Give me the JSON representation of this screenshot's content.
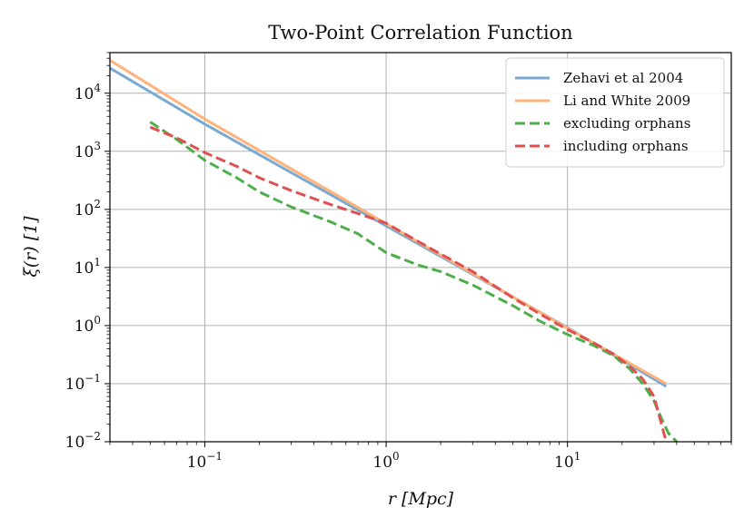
{
  "chart_data": {
    "type": "line",
    "title": "Two-Point Correlation Function",
    "xlabel": "r [Mpc]",
    "ylabel": "ξ(r) [1]",
    "xscale": "log",
    "yscale": "log",
    "xlim": [
      0.03,
      80
    ],
    "ylim": [
      0.01,
      50000
    ],
    "grid": true,
    "legend_position": "top-right",
    "xticks": [
      {
        "value": 0.1,
        "base": "10",
        "exp": "−1"
      },
      {
        "value": 1,
        "base": "10",
        "exp": "0"
      },
      {
        "value": 10,
        "base": "10",
        "exp": "1"
      }
    ],
    "yticks": [
      {
        "value": 0.01,
        "base": "10",
        "exp": "−2"
      },
      {
        "value": 0.1,
        "base": "10",
        "exp": "−1"
      },
      {
        "value": 1,
        "base": "10",
        "exp": "0"
      },
      {
        "value": 10,
        "base": "10",
        "exp": "1"
      },
      {
        "value": 100,
        "base": "10",
        "exp": "2"
      },
      {
        "value": 1000,
        "base": "10",
        "exp": "3"
      },
      {
        "value": 10000,
        "base": "10",
        "exp": "4"
      }
    ],
    "series": [
      {
        "name": "Zehavi et al 2004",
        "color": "#7aaad2",
        "style": "solid",
        "x": [
          0.03,
          0.1,
          1,
          10,
          35
        ],
        "y": [
          27000,
          2940,
          52,
          0.92,
          0.09
        ]
      },
      {
        "name": "Li and White 2009",
        "color": "#ffb27a",
        "style": "solid",
        "x": [
          0.03,
          0.1,
          1,
          10,
          35
        ],
        "y": [
          37000,
          3600,
          57,
          0.9,
          0.1
        ]
      },
      {
        "name": "excluding orphans",
        "color": "#4daf4a",
        "style": "dashed",
        "x": [
          0.05,
          0.07,
          0.1,
          0.15,
          0.2,
          0.3,
          0.5,
          0.7,
          1,
          1.5,
          2,
          3,
          5,
          7,
          10,
          14,
          18,
          22,
          26,
          30,
          33,
          36,
          40
        ],
        "y": [
          3200,
          1600,
          700,
          350,
          200,
          110,
          60,
          38,
          18,
          11,
          8.5,
          5,
          2.2,
          1.2,
          0.7,
          0.45,
          0.3,
          0.18,
          0.1,
          0.05,
          0.025,
          0.014,
          0.01
        ]
      },
      {
        "name": "including orphans",
        "color": "#e05050",
        "style": "dashed",
        "x": [
          0.05,
          0.07,
          0.1,
          0.15,
          0.2,
          0.3,
          0.5,
          0.7,
          1,
          1.5,
          2,
          3,
          5,
          7,
          10,
          14,
          18,
          22,
          26,
          30,
          33,
          35
        ],
        "y": [
          2600,
          1700,
          950,
          550,
          350,
          210,
          120,
          85,
          58,
          28,
          17,
          8.5,
          3,
          1.6,
          0.85,
          0.5,
          0.32,
          0.2,
          0.12,
          0.06,
          0.02,
          0.01
        ]
      }
    ]
  }
}
